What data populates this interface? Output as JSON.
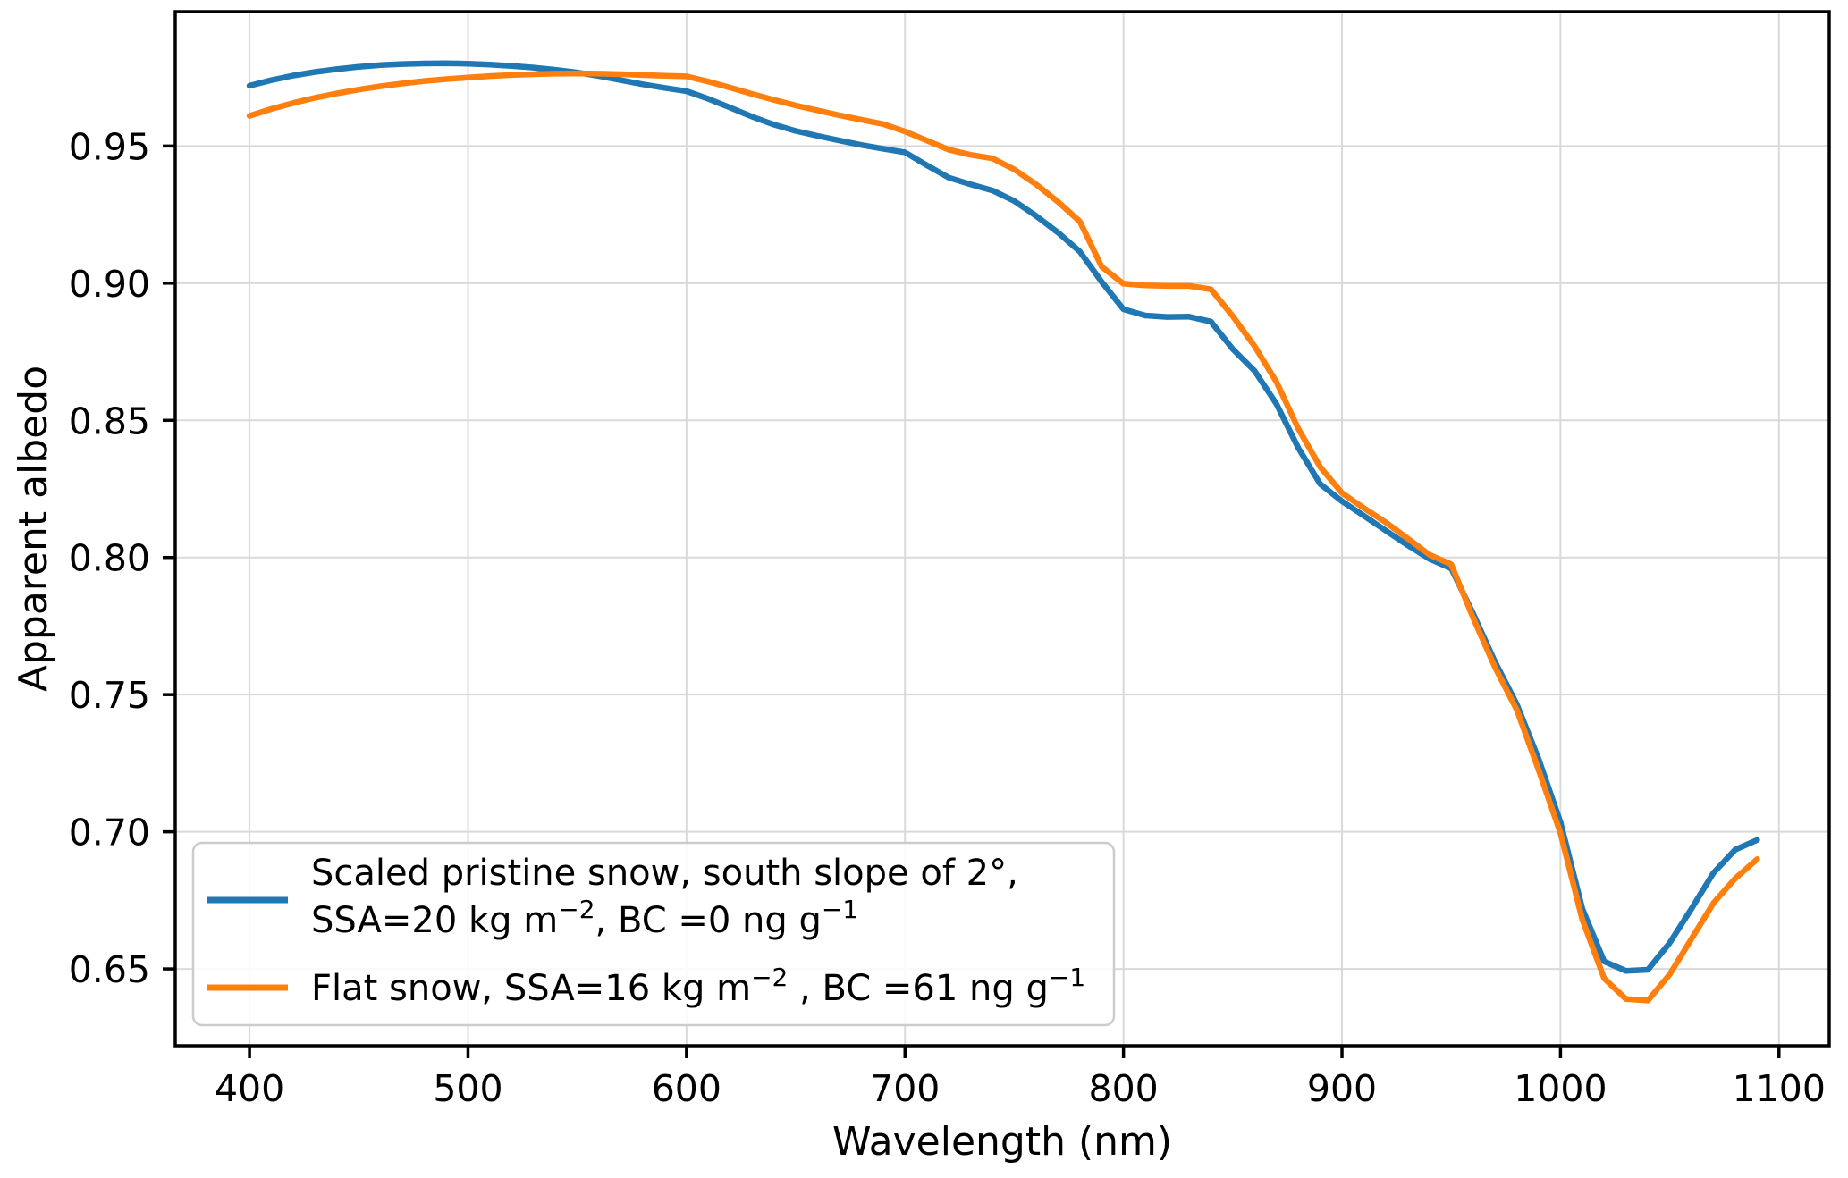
{
  "figure": {
    "xlabel": "Wavelength (nm)",
    "ylabel": "Apparent albedo",
    "x_tick_labels": [
      "400",
      "500",
      "600",
      "700",
      "800",
      "900",
      "1000",
      "1100"
    ],
    "y_tick_labels": [
      "0.65",
      "0.70",
      "0.75",
      "0.80",
      "0.85",
      "0.90",
      "0.95"
    ]
  },
  "legend": {
    "entries": [
      {
        "lines": [
          {
            "segments": [
              {
                "t": "Scaled pristine snow, south slope of 2°,"
              }
            ]
          },
          {
            "segments": [
              {
                "t": "SSA=20 kg m"
              },
              {
                "t": "−2",
                "sup": true
              },
              {
                "t": ", BC =0 ng g",
                "sup": false
              },
              {
                "t": "−1",
                "sup": true
              }
            ]
          }
        ]
      },
      {
        "lines": [
          {
            "segments": [
              {
                "t": "Flat snow, SSA=16 kg m"
              },
              {
                "t": "−2",
                "sup": true
              },
              {
                "t": " , BC =61 ng g",
                "sup": false
              },
              {
                "t": "−1",
                "sup": true
              }
            ]
          }
        ]
      }
    ]
  },
  "colors": {
    "series_blue": "#1f77b4",
    "series_orange": "#ff7f0e",
    "grid": "#d9d9d9",
    "spine": "#000000",
    "legend_border": "#cccccc",
    "background": "#ffffff"
  },
  "chart_data": {
    "type": "line",
    "title": "",
    "xlabel": "Wavelength (nm)",
    "ylabel": "Apparent albedo",
    "grid": true,
    "legend_position": "lower left",
    "xlim": [
      366,
      1123
    ],
    "ylim": [
      0.622,
      0.999
    ],
    "x_ticks": [
      400,
      500,
      600,
      700,
      800,
      900,
      1000,
      1100
    ],
    "y_ticks": [
      0.65,
      0.7,
      0.75,
      0.8,
      0.85,
      0.9,
      0.95
    ],
    "x": [
      400,
      410,
      420,
      430,
      440,
      450,
      460,
      470,
      480,
      490,
      500,
      510,
      520,
      530,
      540,
      550,
      560,
      570,
      580,
      590,
      600,
      610,
      620,
      630,
      640,
      650,
      660,
      670,
      680,
      690,
      700,
      710,
      720,
      730,
      740,
      750,
      760,
      770,
      780,
      790,
      800,
      810,
      820,
      830,
      840,
      850,
      860,
      870,
      880,
      890,
      900,
      910,
      920,
      930,
      940,
      950,
      960,
      970,
      980,
      990,
      1000,
      1010,
      1020,
      1030,
      1040,
      1050,
      1060,
      1070,
      1080,
      1090
    ],
    "series": [
      {
        "name": "Scaled pristine snow, south slope of 2°, SSA=20 kg m⁻², BC =0 ng g⁻¹",
        "color": "#1f77b4",
        "values": [
          0.972,
          0.974,
          0.9757,
          0.977,
          0.978,
          0.9789,
          0.9795,
          0.9799,
          0.9801,
          0.9802,
          0.98,
          0.9797,
          0.9792,
          0.9786,
          0.9778,
          0.9768,
          0.9755,
          0.974,
          0.9725,
          0.9712,
          0.97,
          0.9672,
          0.964,
          0.9607,
          0.9578,
          0.9555,
          0.9537,
          0.952,
          0.9504,
          0.949,
          0.9477,
          0.943,
          0.9385,
          0.936,
          0.9338,
          0.93,
          0.9245,
          0.9185,
          0.9115,
          0.9005,
          0.8905,
          0.8882,
          0.8877,
          0.8878,
          0.886,
          0.876,
          0.868,
          0.856,
          0.84,
          0.8268,
          0.8205,
          0.8152,
          0.8098,
          0.8045,
          0.7995,
          0.796,
          0.7795,
          0.762,
          0.7465,
          0.7265,
          0.7035,
          0.672,
          0.6527,
          0.6493,
          0.6497,
          0.6595,
          0.672,
          0.685,
          0.6935,
          0.697
        ]
      },
      {
        "name": "Flat snow, SSA=16 kg m⁻² , BC =61 ng g⁻¹",
        "color": "#ff7f0e",
        "values": [
          0.961,
          0.9635,
          0.9657,
          0.9676,
          0.9692,
          0.9706,
          0.9718,
          0.9728,
          0.9737,
          0.9744,
          0.975,
          0.9755,
          0.9759,
          0.9762,
          0.9764,
          0.9765,
          0.9764,
          0.9762,
          0.9759,
          0.9756,
          0.9754,
          0.9735,
          0.9713,
          0.969,
          0.9668,
          0.9648,
          0.963,
          0.9612,
          0.9596,
          0.958,
          0.9553,
          0.952,
          0.9487,
          0.9468,
          0.9455,
          0.9415,
          0.936,
          0.9297,
          0.9225,
          0.906,
          0.8998,
          0.8992,
          0.899,
          0.899,
          0.8978,
          0.888,
          0.877,
          0.864,
          0.847,
          0.833,
          0.8235,
          0.818,
          0.8128,
          0.807,
          0.801,
          0.7975,
          0.778,
          0.76,
          0.7445,
          0.7225,
          0.6995,
          0.668,
          0.6465,
          0.639,
          0.6385,
          0.648,
          0.661,
          0.674,
          0.683,
          0.69
        ]
      }
    ]
  }
}
